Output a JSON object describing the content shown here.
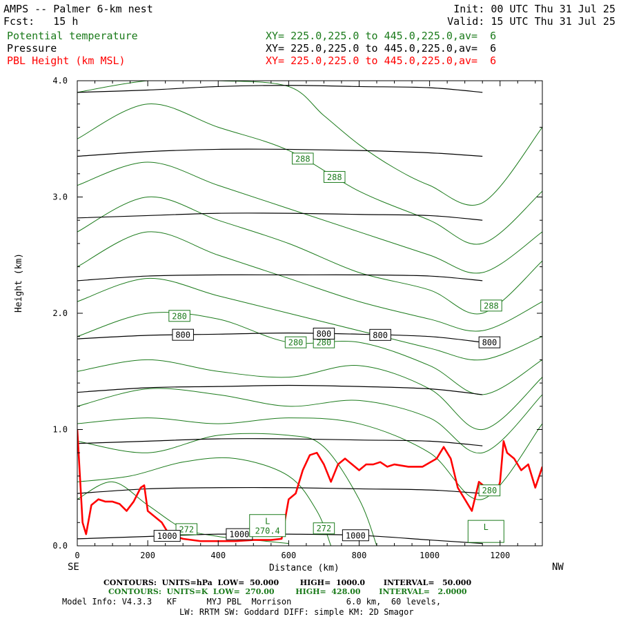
{
  "header": {
    "model_line": "AMPS -- Palmer 6-km nest",
    "init_line": "Init: 00 UTC Thu 31 Jul 25",
    "fcst_line": "Fcst:   15 h",
    "valid_line": "Valid: 15 UTC Thu 31 Jul 25",
    "fields": [
      {
        "name": "Potential temperature",
        "xy": "XY= 225.0,225.0 to 445.0,225.0,av=  6",
        "color": "#1a7a1a"
      },
      {
        "name": "Pressure",
        "xy": "XY= 225.0,225.0 to 445.0,225.0,av=  6",
        "color": "#000000"
      },
      {
        "name": "PBL Height (km MSL)",
        "xy": "XY= 225.0,225.0 to 445.0,225.0,av=  6",
        "color": "#ff0000"
      }
    ]
  },
  "footer": {
    "pressure_contours": "CONTOURS:  UNITS=hPa  LOW=  50.000        HIGH=  1000.0       INTERVAL=   50.000",
    "theta_contours": "CONTOURS:  UNITS=K  LOW=  270.00        HIGH=  428.00       INTERVAL=   2.0000",
    "model_info": "Model Info: V4.3.3   KF      MYJ PBL  Morrison           6.0 km,  60 levels,",
    "model_info2": "LW: RRTM SW: Goddard DIFF: simple KM: 2D Smagor"
  },
  "chart_data": {
    "type": "line",
    "title": "AMPS -- Palmer 6-km nest",
    "xlabel": "Distance (km)",
    "ylabel": "Height (km)",
    "xlim": [
      0,
      1320
    ],
    "ylim": [
      0,
      4.0
    ],
    "x_ticks": [
      "0",
      "200",
      "400",
      "600",
      "800",
      "1000",
      "1200"
    ],
    "y_ticks": [
      "0.0",
      "1.0",
      "2.0",
      "3.0",
      "4.0"
    ],
    "x_end_labels": {
      "left": "SE",
      "right": "NW"
    },
    "series": [
      {
        "name": "PBL Height (km MSL)",
        "color": "#ff0000",
        "x": [
          0,
          15,
          25,
          40,
          60,
          80,
          100,
          120,
          140,
          160,
          180,
          190,
          200,
          220,
          240,
          260,
          300,
          350,
          400,
          450,
          500,
          550,
          580,
          600,
          620,
          640,
          660,
          680,
          700,
          720,
          740,
          760,
          780,
          800,
          820,
          840,
          860,
          880,
          900,
          940,
          980,
          1020,
          1040,
          1060,
          1080,
          1100,
          1120,
          1140,
          1160,
          1180,
          1190,
          1200,
          1210,
          1220,
          1240,
          1260,
          1280,
          1300,
          1320
        ],
        "y": [
          1.0,
          0.2,
          0.1,
          0.35,
          0.4,
          0.38,
          0.38,
          0.36,
          0.3,
          0.38,
          0.5,
          0.52,
          0.3,
          0.25,
          0.2,
          0.1,
          0.06,
          0.04,
          0.04,
          0.04,
          0.05,
          0.05,
          0.06,
          0.4,
          0.45,
          0.65,
          0.78,
          0.8,
          0.7,
          0.55,
          0.7,
          0.75,
          0.7,
          0.65,
          0.7,
          0.7,
          0.72,
          0.68,
          0.7,
          0.68,
          0.68,
          0.75,
          0.85,
          0.75,
          0.5,
          0.4,
          0.3,
          0.55,
          0.5,
          0.5,
          0.45,
          0.55,
          0.9,
          0.8,
          0.75,
          0.65,
          0.7,
          0.5,
          0.68
        ]
      },
      {
        "name": "Pressure",
        "color": "#000000",
        "contours": [
          {
            "label": "1000",
            "label_x": [
              255,
              460,
              790
            ],
            "x": [
              0,
              200,
              400,
              600,
              800,
              1000,
              1150
            ],
            "y": [
              0.06,
              0.08,
              0.1,
              0.1,
              0.09,
              0.05,
              0.02
            ]
          },
          {
            "label": "",
            "x": [
              0,
              200,
              400,
              600,
              800,
              1000,
              1150
            ],
            "y": [
              0.45,
              0.49,
              0.5,
              0.5,
              0.49,
              0.48,
              0.45
            ]
          },
          {
            "label": "",
            "x": [
              0,
              200,
              400,
              600,
              800,
              1000,
              1150
            ],
            "y": [
              0.88,
              0.9,
              0.92,
              0.92,
              0.91,
              0.9,
              0.86
            ]
          },
          {
            "label": "",
            "x": [
              0,
              200,
              400,
              600,
              800,
              1000,
              1150
            ],
            "y": [
              1.32,
              1.36,
              1.37,
              1.38,
              1.37,
              1.35,
              1.3
            ]
          },
          {
            "label": "800",
            "label_x": [
              300,
              700,
              860,
              1170
            ],
            "x": [
              0,
              200,
              400,
              600,
              800,
              1000,
              1150
            ],
            "y": [
              1.78,
              1.81,
              1.82,
              1.83,
              1.82,
              1.8,
              1.75
            ]
          },
          {
            "label": "",
            "x": [
              0,
              200,
              400,
              600,
              800,
              1000,
              1150
            ],
            "y": [
              2.28,
              2.32,
              2.33,
              2.33,
              2.33,
              2.32,
              2.28
            ]
          },
          {
            "label": "",
            "x": [
              0,
              200,
              400,
              600,
              800,
              1000,
              1150
            ],
            "y": [
              2.82,
              2.84,
              2.86,
              2.86,
              2.85,
              2.84,
              2.8
            ]
          },
          {
            "label": "",
            "x": [
              0,
              200,
              400,
              600,
              800,
              1000,
              1150
            ],
            "y": [
              3.35,
              3.39,
              3.41,
              3.41,
              3.4,
              3.38,
              3.35
            ]
          },
          {
            "label": "",
            "x": [
              0,
              200,
              400,
              600,
              800,
              1000,
              1150
            ],
            "y": [
              3.9,
              3.92,
              3.95,
              3.96,
              3.95,
              3.94,
              3.9
            ]
          }
        ]
      },
      {
        "name": "Potential temperature",
        "color": "#1a7a1a",
        "contours": [
          {
            "label": "272",
            "label_x": [
              310
            ],
            "x": [
              0,
              100,
              200,
              300,
              400,
              500,
              600
            ],
            "y": [
              0.4,
              0.55,
              0.35,
              0.15,
              0.08,
              0.05,
              0.02
            ]
          },
          {
            "label": "272",
            "label_x": [
              700
            ],
            "x": [
              0,
              150,
              300,
              450,
              600,
              680,
              720
            ],
            "y": [
              0.55,
              0.6,
              0.72,
              0.75,
              0.6,
              0.3,
              0.0
            ]
          },
          {
            "label": "",
            "x": [
              0,
              200,
              400,
              600,
              700,
              800,
              850
            ],
            "y": [
              0.9,
              0.8,
              0.95,
              0.95,
              0.85,
              0.4,
              0.0
            ]
          },
          {
            "label": "280",
            "label_x": [
              1170
            ],
            "x": [
              0,
              200,
              400,
              600,
              800,
              1000,
              1150,
              1320
            ],
            "y": [
              1.05,
              1.1,
              1.05,
              1.1,
              1.05,
              0.8,
              0.4,
              1.05
            ]
          },
          {
            "label": "",
            "x": [
              0,
              200,
              400,
              600,
              800,
              1000,
              1150,
              1320
            ],
            "y": [
              1.2,
              1.35,
              1.3,
              1.2,
              1.25,
              1.1,
              0.8,
              1.3
            ]
          },
          {
            "label": "",
            "x": [
              0,
              200,
              400,
              600,
              800,
              1000,
              1150,
              1320
            ],
            "y": [
              1.5,
              1.6,
              1.5,
              1.45,
              1.55,
              1.35,
              1.0,
              1.45
            ]
          },
          {
            "label": "280",
            "label_x": [
              290,
              620,
              700
            ],
            "x": [
              0,
              200,
              400,
              600,
              800,
              1000,
              1150,
              1320
            ],
            "y": [
              1.8,
              2.0,
              1.95,
              1.75,
              1.75,
              1.55,
              1.3,
              1.6
            ]
          },
          {
            "label": "",
            "x": [
              0,
              200,
              400,
              600,
              800,
              1000,
              1150,
              1320
            ],
            "y": [
              2.1,
              2.3,
              2.15,
              2.0,
              1.85,
              1.7,
              1.6,
              1.8
            ]
          },
          {
            "label": "",
            "x": [
              0,
              200,
              400,
              600,
              800,
              1000,
              1150,
              1320
            ],
            "y": [
              2.4,
              2.7,
              2.5,
              2.3,
              2.1,
              1.95,
              1.85,
              2.1
            ]
          },
          {
            "label": "288",
            "label_x": [
              1175
            ],
            "x": [
              0,
              200,
              400,
              600,
              800,
              1000,
              1150,
              1320
            ],
            "y": [
              2.7,
              3.0,
              2.8,
              2.6,
              2.35,
              2.2,
              2.0,
              2.45
            ]
          },
          {
            "label": "",
            "x": [
              0,
              200,
              400,
              600,
              800,
              1000,
              1150,
              1320
            ],
            "y": [
              3.1,
              3.3,
              3.1,
              2.9,
              2.7,
              2.5,
              2.35,
              2.7
            ]
          },
          {
            "label": "288",
            "label_x": [
              640,
              730
            ],
            "x": [
              0,
              200,
              400,
              600,
              800,
              1000,
              1150,
              1320
            ],
            "y": [
              3.5,
              3.8,
              3.6,
              3.4,
              3.05,
              2.8,
              2.6,
              3.05
            ]
          },
          {
            "label": "",
            "x": [
              0,
              200,
              400,
              600,
              700,
              800,
              900,
              1000,
              1150,
              1320
            ],
            "y": [
              3.9,
              4.0,
              4.0,
              3.95,
              3.7,
              3.45,
              3.25,
              3.1,
              2.95,
              3.6
            ]
          }
        ]
      }
    ],
    "annotations": [
      {
        "text": "L",
        "sub": "270.4",
        "x": 540,
        "y": 0.15
      },
      {
        "text": "L",
        "sub": "",
        "x": 1160,
        "y": 0.1
      }
    ]
  }
}
